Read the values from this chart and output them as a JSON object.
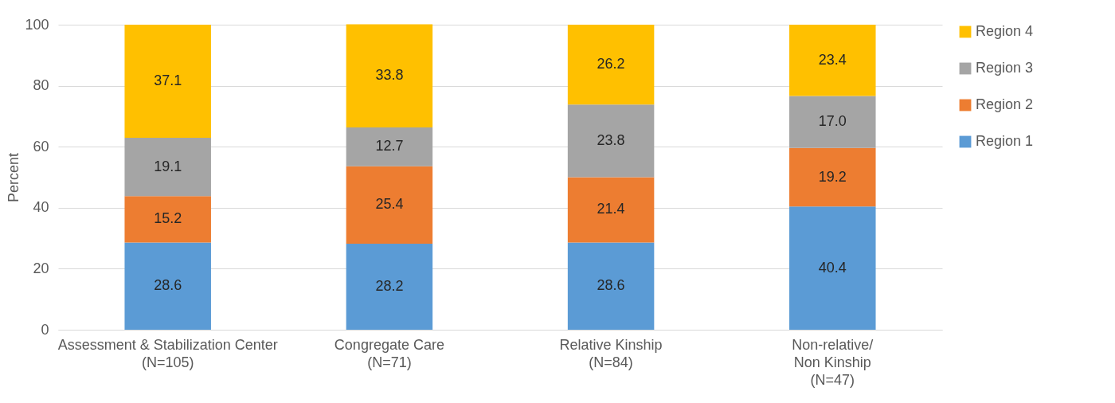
{
  "chart_data": {
    "type": "bar",
    "stacked": true,
    "ylabel": "Percent",
    "categories": [
      "Assessment & Stabilization Center\n(N=105)",
      "Congregate Care\n(N=71)",
      "Relative Kinship\n(N=84)",
      "Non-relative/\nNon Kinship\n(N=47)"
    ],
    "series": [
      {
        "name": "Region 1",
        "color": "#5b9bd5",
        "values": [
          28.6,
          28.2,
          28.6,
          40.4
        ],
        "value_labels": [
          "28.6",
          "28.2",
          "28.6",
          "40.4"
        ]
      },
      {
        "name": "Region 2",
        "color": "#ed7d31",
        "values": [
          15.2,
          25.4,
          21.4,
          19.2
        ],
        "value_labels": [
          "15.2",
          "25.4",
          "21.4",
          "19.2"
        ]
      },
      {
        "name": "Region 3",
        "color": "#a5a5a5",
        "values": [
          19.1,
          12.7,
          23.8,
          17.0
        ],
        "value_labels": [
          "19.1",
          "12.7",
          "23.8",
          "17.0"
        ]
      },
      {
        "name": "Region 4",
        "color": "#ffc000",
        "values": [
          37.1,
          33.8,
          26.2,
          23.4
        ],
        "value_labels": [
          "37.1",
          "33.8",
          "26.2",
          "23.4"
        ]
      }
    ],
    "ylim": [
      0,
      100
    ],
    "yticks": [
      0,
      20,
      40,
      60,
      80,
      100
    ],
    "grid": "y",
    "legend": "right"
  }
}
